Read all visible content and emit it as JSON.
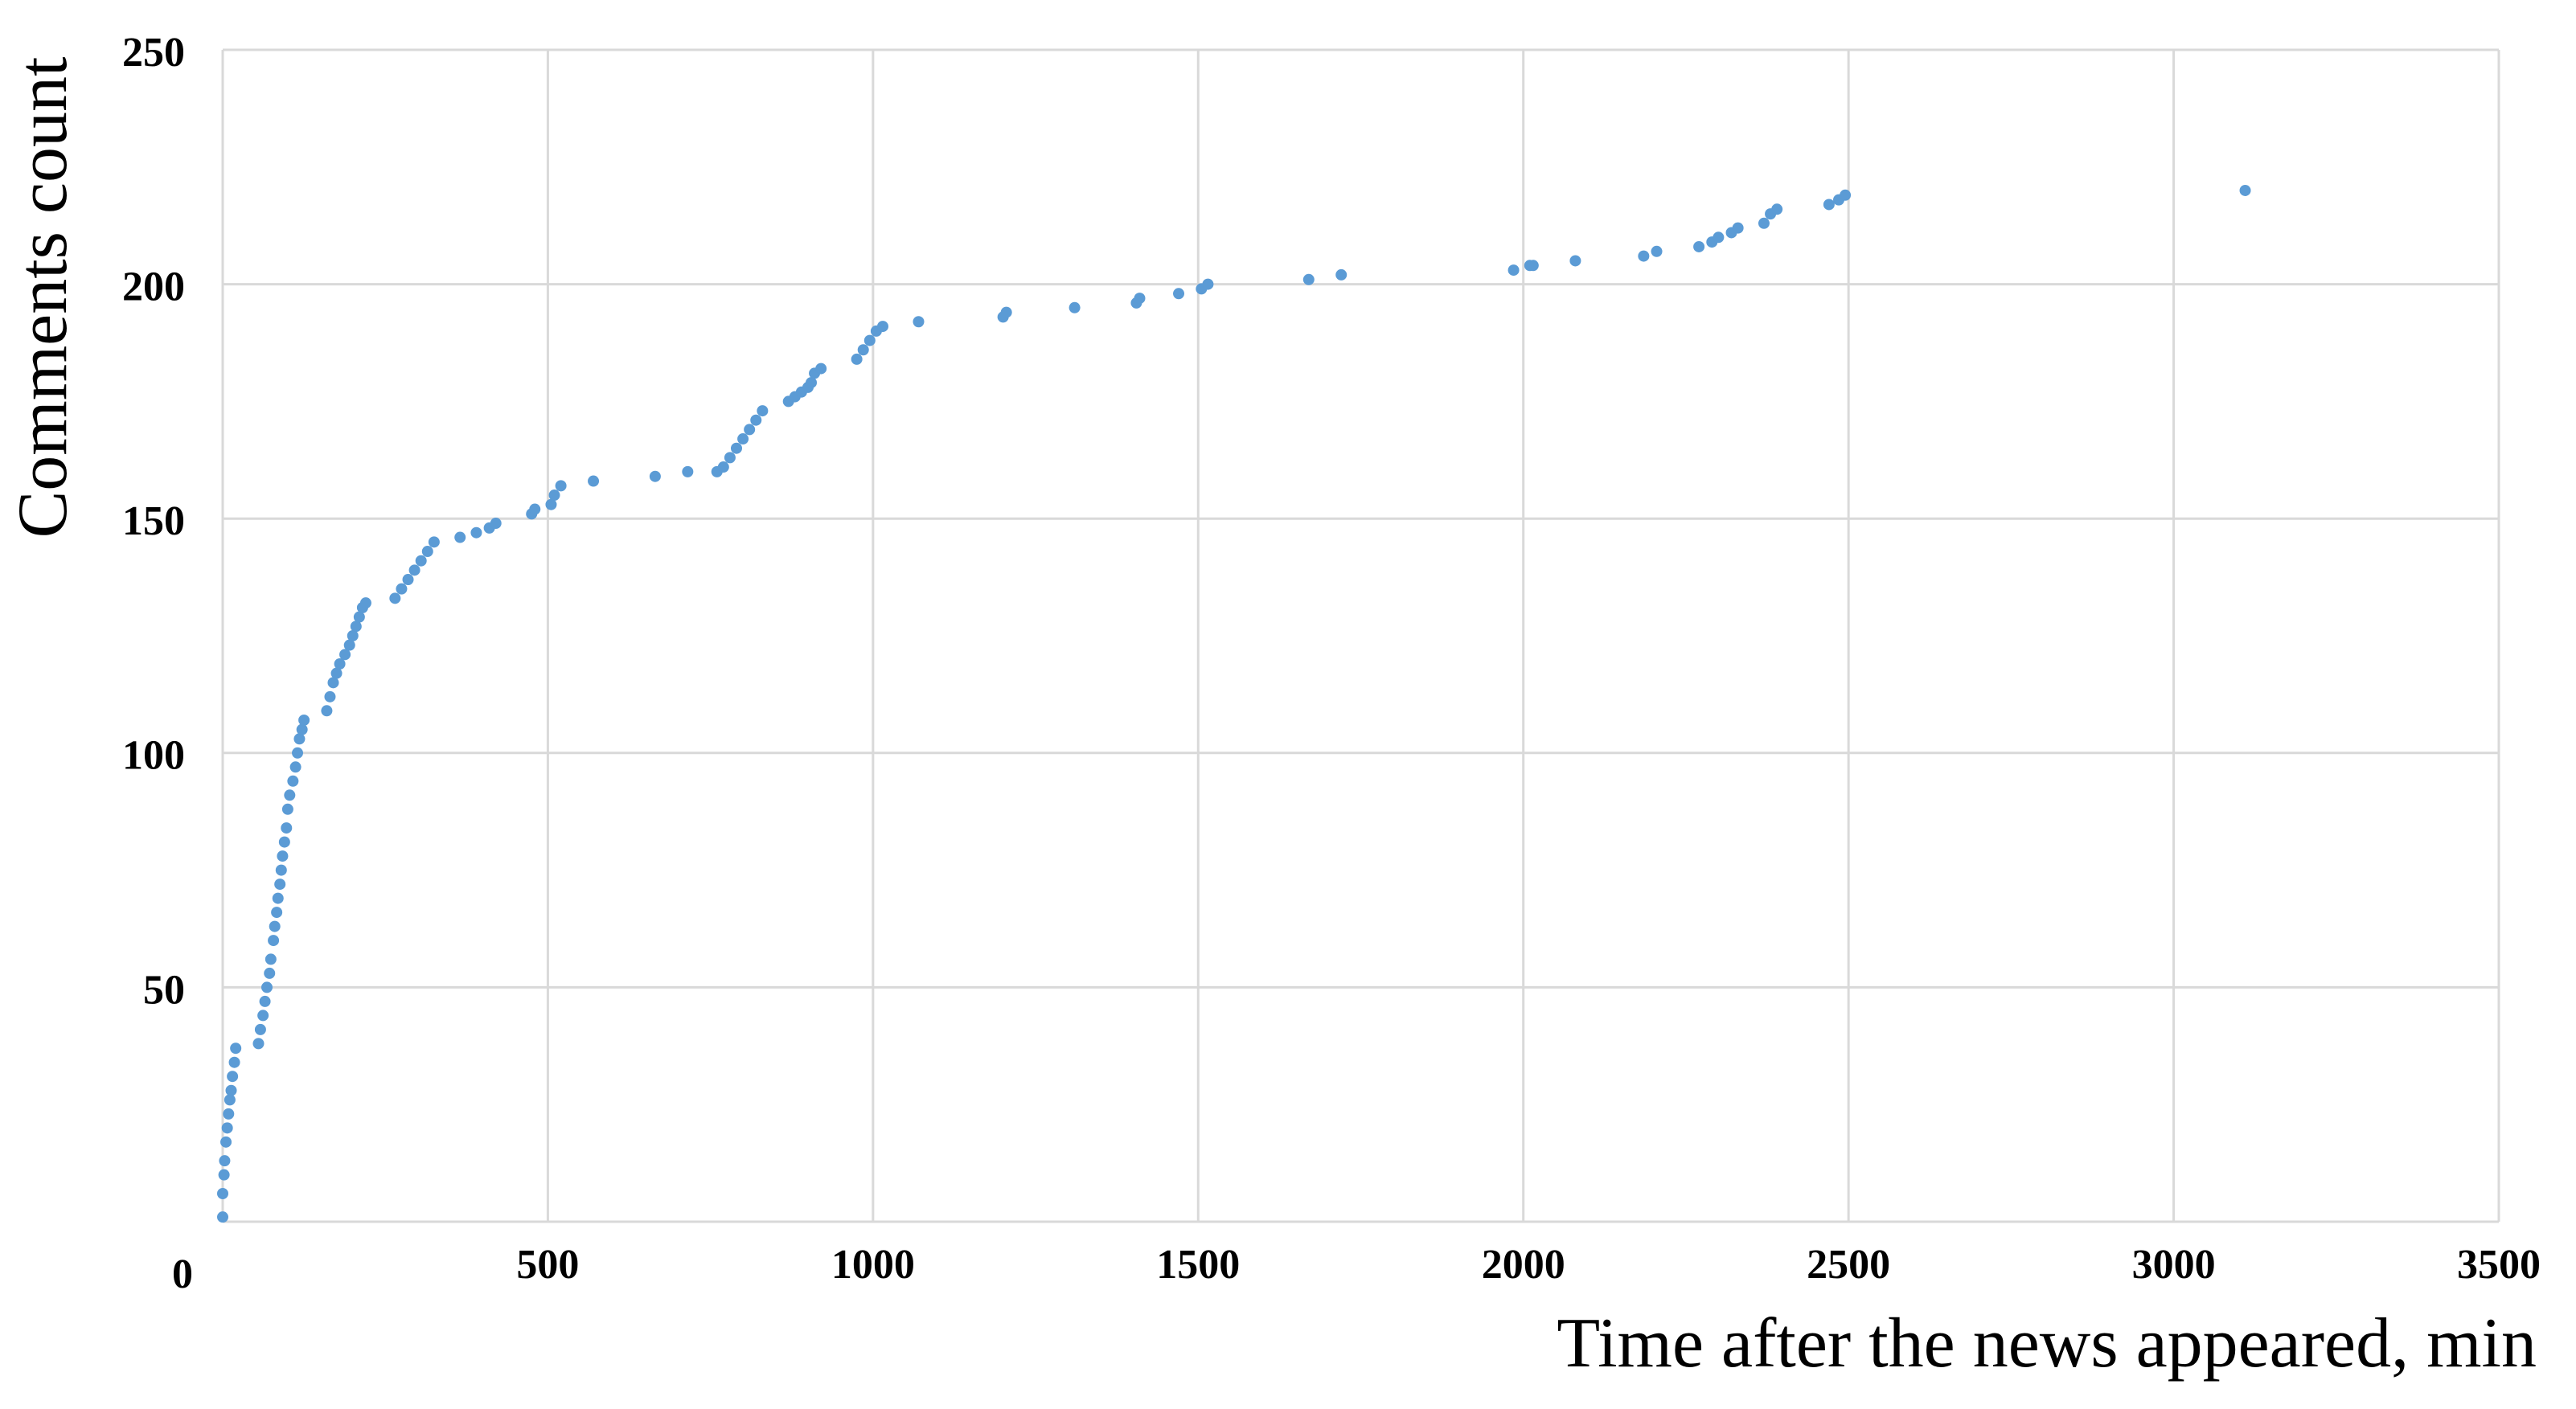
{
  "chart_data": {
    "type": "scatter",
    "x_label": "Time after the news appeared, min",
    "y_label": "Comments count",
    "xlim": [
      0,
      3500
    ],
    "xticks": [
      0,
      500,
      1000,
      1500,
      2000,
      2500,
      3000,
      3500
    ],
    "ylim": [
      0,
      250
    ],
    "yticks": [
      50,
      100,
      150,
      200,
      250
    ],
    "grid": true,
    "color": "#5b9bd5",
    "x": [
      0,
      0,
      2,
      3,
      5,
      7,
      9,
      11,
      13,
      15,
      18,
      20,
      55,
      58,
      62,
      65,
      68,
      72,
      74,
      78,
      80,
      83,
      85,
      88,
      90,
      92,
      95,
      98,
      100,
      103,
      108,
      112,
      115,
      118,
      122,
      125,
      160,
      165,
      170,
      175,
      180,
      188,
      195,
      200,
      205,
      210,
      215,
      220,
      265,
      275,
      285,
      295,
      305,
      315,
      325,
      365,
      390,
      410,
      420,
      475,
      480,
      505,
      510,
      520,
      570,
      665,
      715,
      760,
      770,
      780,
      790,
      800,
      810,
      820,
      830,
      870,
      880,
      890,
      900,
      905,
      910,
      920,
      975,
      985,
      995,
      1005,
      1015,
      1070,
      1200,
      1205,
      1310,
      1405,
      1410,
      1470,
      1505,
      1515,
      1670,
      1720,
      1985,
      2010,
      2015,
      2080,
      2185,
      2205,
      2270,
      2290,
      2300,
      2320,
      2330,
      2370,
      2380,
      2390,
      2470,
      2485,
      2495,
      3110
    ],
    "values": [
      1,
      6,
      10,
      13,
      17,
      20,
      23,
      26,
      28,
      31,
      34,
      37,
      38,
      41,
      44,
      47,
      50,
      53,
      56,
      60,
      63,
      66,
      69,
      72,
      75,
      78,
      81,
      84,
      88,
      91,
      94,
      97,
      100,
      103,
      105,
      107,
      109,
      112,
      115,
      117,
      119,
      121,
      123,
      125,
      127,
      129,
      131,
      132,
      133,
      135,
      137,
      139,
      141,
      143,
      145,
      146,
      147,
      148,
      149,
      151,
      152,
      153,
      155,
      157,
      158,
      159,
      160,
      160,
      161,
      163,
      165,
      167,
      169,
      171,
      173,
      175,
      176,
      177,
      178,
      179,
      181,
      182,
      184,
      186,
      188,
      190,
      191,
      192,
      193,
      194,
      195,
      196,
      197,
      198,
      199,
      200,
      201,
      202,
      203,
      204,
      204,
      205,
      206,
      207,
      208,
      209,
      210,
      211,
      212,
      213,
      215,
      216,
      217,
      218,
      219,
      220
    ]
  }
}
